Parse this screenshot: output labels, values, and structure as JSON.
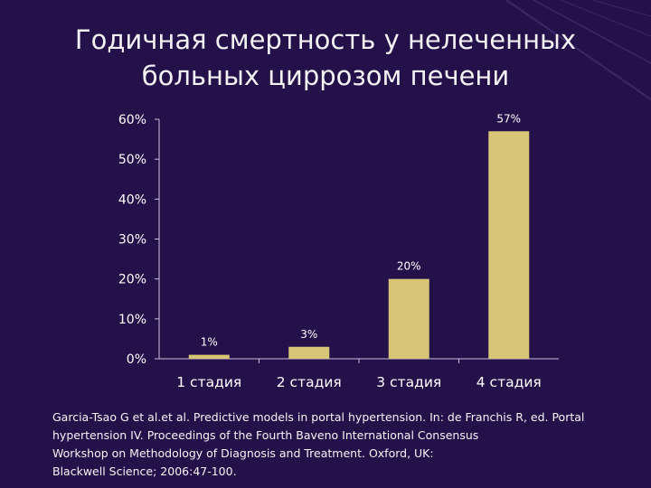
{
  "slide": {
    "title_lines": [
      "Годичная смертность у нелеченных",
      "больных циррозом печени"
    ],
    "source_lines": [
      "Garcia-Tsao G et al.et al. Predictive models in portal hypertension. In: de Franchis R, ed. Portal",
      "hypertension IV. Proceedings of the Fourth Baveno International Consensus",
      "Workshop on Methodology of Diagnosis and Treatment. Oxford, UK:",
      "Blackwell Science; 2006:47-100."
    ]
  },
  "chart_data": {
    "type": "bar",
    "categories": [
      "1 стадия",
      "2 стадия",
      "3 стадия",
      "4 стадия"
    ],
    "values": [
      1,
      3,
      20,
      57
    ],
    "data_labels": [
      "1%",
      "3%",
      "20%",
      "57%"
    ],
    "y_ticks": [
      "0%",
      "10%",
      "20%",
      "30%",
      "40%",
      "50%",
      "60%"
    ],
    "ylim": [
      0,
      60
    ],
    "grid": false,
    "legend": "none",
    "colors": {
      "bar": "#d8c577",
      "axis": "#c8c0dc",
      "tick_text": "#ffffff",
      "label_text": "#ffffff",
      "background": "#25114a"
    }
  }
}
